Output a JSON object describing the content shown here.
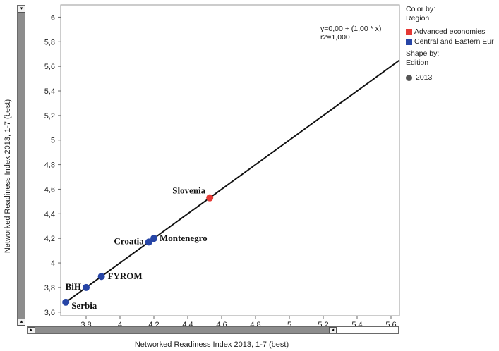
{
  "chart_data": {
    "type": "scatter",
    "xlabel": "Networked Readiness Index 2013, 1-7 (best)",
    "ylabel": "Networked Readiness Index 2013, 1-7 (best)",
    "xlim": [
      3.65,
      5.65
    ],
    "ylim": [
      3.57,
      6.1
    ],
    "x_ticks": [
      "3,8",
      "4",
      "4,2",
      "4,4",
      "4,6",
      "4,8",
      "5",
      "5,2",
      "5,4",
      "5,6"
    ],
    "x_tick_values": [
      3.8,
      4.0,
      4.2,
      4.4,
      4.6,
      4.8,
      5.0,
      5.2,
      5.4,
      5.6
    ],
    "y_ticks": [
      "3,6",
      "3,8",
      "4",
      "4,2",
      "4,4",
      "4,6",
      "4,8",
      "5",
      "5,2",
      "5,4",
      "5,6",
      "5,8",
      "6"
    ],
    "y_tick_values": [
      3.6,
      3.8,
      4.0,
      4.2,
      4.4,
      4.6,
      4.8,
      5.0,
      5.2,
      5.4,
      5.6,
      5.8,
      6.0
    ],
    "trend_line": {
      "equation": "y=0,00 + (1,00 * x)",
      "r2": "r2=1,000",
      "intercept": 0.0,
      "slope": 1.0
    },
    "points": [
      {
        "label": "Slovenia",
        "x": 4.53,
        "y": 4.53,
        "region": "Advanced economies",
        "color": "#e53935"
      },
      {
        "label": "Montenegro",
        "x": 4.2,
        "y": 4.2,
        "region": "Central and Eastern Eur",
        "color": "#2745a6"
      },
      {
        "label": "Croatia",
        "x": 4.17,
        "y": 4.17,
        "region": "Central and Eastern Eur",
        "color": "#2745a6"
      },
      {
        "label": "FYROM",
        "x": 3.89,
        "y": 3.89,
        "region": "Central and Eastern Eur",
        "color": "#2745a6"
      },
      {
        "label": "BiH",
        "x": 3.8,
        "y": 3.8,
        "region": "Central and Eastern Eur",
        "color": "#2745a6"
      },
      {
        "label": "Serbia",
        "x": 3.68,
        "y": 3.68,
        "region": "Central and Eastern Eur",
        "color": "#2745a6"
      }
    ],
    "grid": false,
    "legend_position": "right"
  },
  "legend": {
    "color_by_title": "Color by:",
    "color_by_field": "Region",
    "regions": [
      {
        "label": "Advanced economies",
        "color": "#e53935"
      },
      {
        "label": "Central and Eastern Eur",
        "color": "#2745a6"
      }
    ],
    "shape_by_title": "Shape by:",
    "shape_by_field": "Edition",
    "shapes": [
      {
        "label": "2013",
        "color": "#555555"
      }
    ]
  },
  "scrollbars": {
    "up_glyph": "▾",
    "down_glyph": "▴",
    "left_glyph": "▸",
    "right_glyph": "◂"
  }
}
